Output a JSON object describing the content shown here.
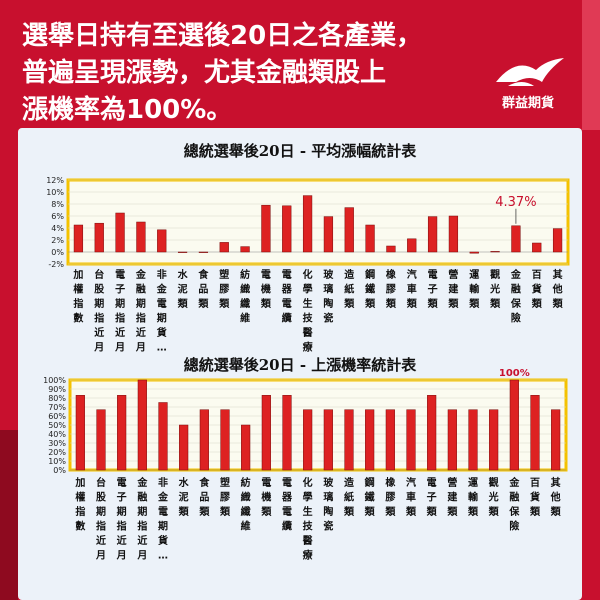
{
  "headline": {
    "line1": "選舉日持有至選後20日之各產業，",
    "line2": "普遍呈現漲勢，尤其金融類股上",
    "line3": "漲機率為100%。"
  },
  "logo": {
    "text": "群益期貨",
    "icon": "bird-logo-icon"
  },
  "colors": {
    "background": "#c8102e",
    "bar": "#dd2222",
    "panel": "#ecf2f9",
    "plot_border": "#f4c200"
  },
  "chart_data": [
    {
      "type": "bar",
      "title": "總統選舉後20日 - 平均漲幅統計表",
      "categories": [
        "加權指數",
        "台股期指近月",
        "電子期指近月",
        "金融期指近月",
        "非金電期貨…",
        "水泥類",
        "食品類",
        "塑膠類",
        "紡織纖維",
        "電機類",
        "電器電纜",
        "化學生技醫療",
        "玻璃陶瓷",
        "造紙類",
        "鋼鐵類",
        "橡膠類",
        "汽車類",
        "電子類",
        "營建類",
        "運輸類",
        "觀光類",
        "金融保險",
        "百貨類",
        "其他類"
      ],
      "values": [
        4.5,
        4.8,
        6.5,
        5.0,
        3.7,
        -0.1,
        0.0,
        1.6,
        0.9,
        7.8,
        7.7,
        9.4,
        5.9,
        7.4,
        4.5,
        1.0,
        2.2,
        5.9,
        6.0,
        -0.2,
        0.1,
        4.37,
        1.5,
        3.9
      ],
      "yticks": [
        "12%",
        "10%",
        "8%",
        "6%",
        "4%",
        "2%",
        "0%",
        "-2%"
      ],
      "ylim": [
        -2,
        12
      ],
      "annotation": {
        "label": "4.37%",
        "category": "金融保險"
      },
      "grid": true,
      "legend": "none"
    },
    {
      "type": "bar",
      "title": "總統選舉後20日 - 上漲機率統計表",
      "categories": [
        "加權指數",
        "台股期指近月",
        "電子期指近月",
        "金融期指近月",
        "非金電期貨…",
        "水泥類",
        "食品類",
        "塑膠類",
        "紡織纖維",
        "電機類",
        "電器電纜",
        "化學生技醫療",
        "玻璃陶瓷",
        "造紙類",
        "鋼鐵類",
        "橡膠類",
        "汽車類",
        "電子類",
        "營建類",
        "運輸類",
        "觀光類",
        "金融保險",
        "百貨類",
        "其他類"
      ],
      "values": [
        83,
        67,
        83,
        100,
        75,
        50,
        67,
        67,
        50,
        83,
        83,
        67,
        67,
        67,
        67,
        67,
        67,
        83,
        67,
        67,
        67,
        100,
        83,
        67
      ],
      "yticks": [
        "100%",
        "90%",
        "80%",
        "70%",
        "60%",
        "50%",
        "40%",
        "30%",
        "20%",
        "10%",
        "0%"
      ],
      "ylim": [
        0,
        100
      ],
      "annotation": {
        "label": "100%",
        "category": "金融保險"
      },
      "grid": true,
      "legend": "none"
    }
  ]
}
